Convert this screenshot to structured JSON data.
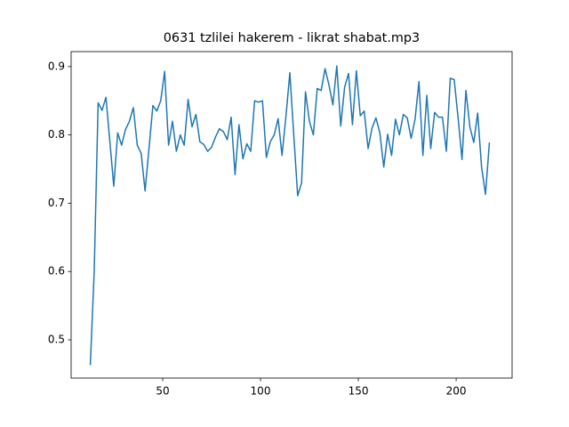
{
  "chart_data": {
    "type": "line",
    "title": "0631 tzlilei hakerem - likrat shabat.mp3",
    "x": [
      13,
      15,
      17,
      19,
      21,
      23,
      25,
      27,
      29,
      31,
      33,
      35,
      37,
      39,
      41,
      43,
      45,
      47,
      49,
      51,
      53,
      55,
      57,
      59,
      61,
      63,
      65,
      67,
      69,
      71,
      73,
      75,
      77,
      79,
      81,
      83,
      85,
      87,
      89,
      91,
      93,
      95,
      97,
      99,
      101,
      103,
      105,
      107,
      109,
      111,
      113,
      115,
      117,
      119,
      121,
      123,
      125,
      127,
      129,
      131,
      133,
      135,
      137,
      139,
      141,
      143,
      145,
      147,
      149,
      151,
      153,
      155,
      157,
      159,
      161,
      163,
      165,
      167,
      169,
      171,
      173,
      175,
      177,
      179,
      181,
      183,
      185,
      187,
      189,
      191,
      193,
      195,
      197,
      199,
      201,
      203,
      205,
      207,
      209,
      211,
      213,
      215,
      217
    ],
    "series": [
      {
        "color": "#1f77b4",
        "values": [
          0.463,
          0.6,
          0.847,
          0.836,
          0.855,
          0.79,
          0.725,
          0.803,
          0.785,
          0.808,
          0.82,
          0.84,
          0.785,
          0.773,
          0.718,
          0.78,
          0.843,
          0.835,
          0.85,
          0.893,
          0.785,
          0.82,
          0.776,
          0.8,
          0.785,
          0.852,
          0.812,
          0.83,
          0.79,
          0.786,
          0.776,
          0.782,
          0.797,
          0.809,
          0.805,
          0.793,
          0.826,
          0.742,
          0.815,
          0.765,
          0.787,
          0.776,
          0.85,
          0.848,
          0.85,
          0.767,
          0.79,
          0.8,
          0.824,
          0.77,
          0.827,
          0.891,
          0.8,
          0.711,
          0.73,
          0.863,
          0.82,
          0.8,
          0.868,
          0.865,
          0.897,
          0.873,
          0.844,
          0.901,
          0.813,
          0.87,
          0.89,
          0.815,
          0.894,
          0.828,
          0.835,
          0.78,
          0.81,
          0.825,
          0.803,
          0.753,
          0.801,
          0.77,
          0.823,
          0.8,
          0.83,
          0.825,
          0.795,
          0.823,
          0.878,
          0.77,
          0.858,
          0.78,
          0.833,
          0.826,
          0.826,
          0.776,
          0.883,
          0.881,
          0.825,
          0.764,
          0.865,
          0.812,
          0.789,
          0.832,
          0.753,
          0.713,
          0.789
        ]
      }
    ],
    "xlim": [
      3.2,
      228.6
    ],
    "ylim": [
      0.444,
      0.922
    ],
    "xticks": [
      50,
      100,
      150,
      200
    ],
    "yticks": [
      0.5,
      0.6,
      0.7,
      0.8,
      0.9
    ]
  }
}
